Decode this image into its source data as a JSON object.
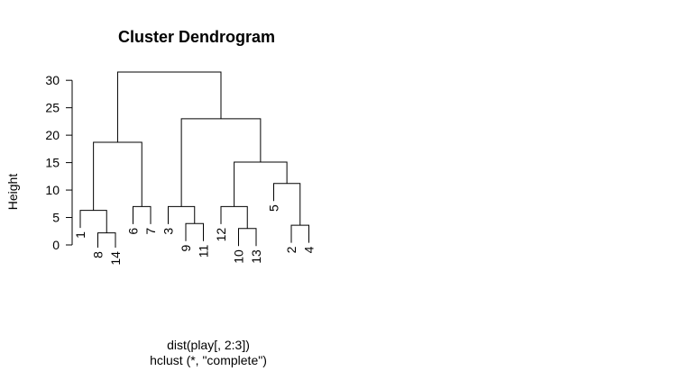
{
  "chart_data": {
    "type": "dendrogram",
    "title": "Cluster Dendrogram",
    "ylabel": "Height",
    "xlabel_lines": [
      "dist(play[, 2:3])",
      "hclust (*, \"complete\")"
    ],
    "ylim": [
      0,
      32
    ],
    "yticks": [
      0,
      5,
      10,
      15,
      20,
      25,
      30
    ],
    "leaf_order": [
      "1",
      "8",
      "14",
      "6",
      "7",
      "3",
      "9",
      "11",
      "12",
      "10",
      "13",
      "5",
      "2",
      "4"
    ],
    "merges": [
      {
        "left": {
          "leaf": 1
        },
        "right": {
          "leaf": 2
        },
        "height": 2.2
      },
      {
        "left": {
          "leaf": 0
        },
        "right": {
          "node": 0
        },
        "height": 6.3
      },
      {
        "left": {
          "leaf": 3
        },
        "right": {
          "leaf": 4
        },
        "height": 7.0
      },
      {
        "left": {
          "node": 1
        },
        "right": {
          "node": 2
        },
        "height": 18.7
      },
      {
        "left": {
          "leaf": 6
        },
        "right": {
          "leaf": 7
        },
        "height": 3.9
      },
      {
        "left": {
          "leaf": 5
        },
        "right": {
          "node": 4
        },
        "height": 7.0
      },
      {
        "left": {
          "leaf": 9
        },
        "right": {
          "leaf": 10
        },
        "height": 3.0
      },
      {
        "left": {
          "leaf": 8
        },
        "right": {
          "node": 6
        },
        "height": 7.0
      },
      {
        "left": {
          "leaf": 12
        },
        "right": {
          "leaf": 13
        },
        "height": 3.6
      },
      {
        "left": {
          "leaf": 11
        },
        "right": {
          "node": 8
        },
        "height": 11.2
      },
      {
        "left": {
          "node": 7
        },
        "right": {
          "node": 9
        },
        "height": 15.1
      },
      {
        "left": {
          "node": 5
        },
        "right": {
          "node": 10
        },
        "height": 23.0
      },
      {
        "left": {
          "node": 3
        },
        "right": {
          "node": 11
        },
        "height": 31.5
      }
    ]
  }
}
